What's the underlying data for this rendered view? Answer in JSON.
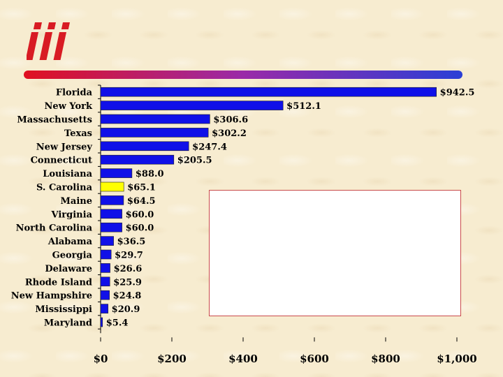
{
  "logo": {
    "text": "iii",
    "color": "#d81b23"
  },
  "colors": {
    "bar": "#1010e8",
    "highlight_bar": "#ffff00",
    "divider_start": "#e01020",
    "divider_end": "#2a3fd6"
  },
  "chart_data": {
    "type": "bar",
    "orientation": "horizontal",
    "categories": [
      "Florida",
      "New York",
      "Massachusetts",
      "Texas",
      "New Jersey",
      "Connecticut",
      "Louisiana",
      "S. Carolina",
      "Maine",
      "Virginia",
      "North Carolina",
      "Alabama",
      "Georgia",
      "Delaware",
      "Rhode Island",
      "New Hampshire",
      "Mississippi",
      "Maryland"
    ],
    "values": [
      942.5,
      512.1,
      306.6,
      302.2,
      247.4,
      205.5,
      88.0,
      65.1,
      64.5,
      60.0,
      60.0,
      36.5,
      29.7,
      26.6,
      25.9,
      24.8,
      20.9,
      5.4
    ],
    "value_labels": [
      "$942.5",
      "$512.1",
      "$306.6",
      "$302.2",
      "$247.4",
      "$205.5",
      "$88.0",
      "$65.1",
      "$64.5",
      "$60.0",
      "$60.0",
      "$36.5",
      "$29.7",
      "$26.6",
      "$25.9",
      "$24.8",
      "$20.9",
      "$5.4"
    ],
    "highlighted": [
      "S. Carolina"
    ],
    "xlim": [
      0,
      1000
    ],
    "xticks": [
      0,
      200,
      400,
      600,
      800,
      1000
    ],
    "xtick_labels": [
      "$0",
      "$200",
      "$400",
      "$600",
      "$800",
      "$1,000"
    ],
    "grid": false,
    "legend": "none"
  }
}
